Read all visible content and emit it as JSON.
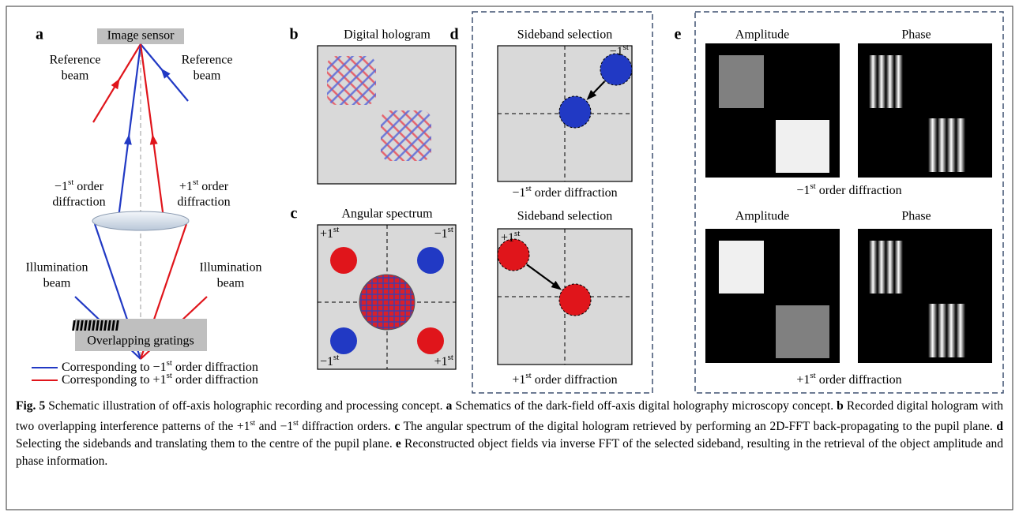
{
  "panel_a": {
    "letter": "a",
    "sensor": "Image sensor",
    "reference_left": [
      "Reference",
      "beam"
    ],
    "reference_right": [
      "Reference",
      "beam"
    ],
    "diffraction_left": [
      {
        "pre": "−1",
        "sup": "st",
        "post": " order"
      },
      "diffraction"
    ],
    "diffraction_right": [
      {
        "pre": "+1",
        "sup": "st",
        "post": " order"
      },
      "diffraction"
    ],
    "illumination_left": [
      "Illumination",
      "beam"
    ],
    "illumination_right": [
      "Illumination",
      "beam"
    ],
    "gratings": "Overlapping gratings",
    "legend": [
      {
        "pre": "Corresponding to −1",
        "sup": "st",
        "post": " order diffraction",
        "color": "#2139c4"
      },
      {
        "pre": "Corresponding to +1",
        "sup": "st",
        "post": " order diffraction",
        "color": "#e0151b"
      }
    ]
  },
  "panel_b": {
    "letter": "b",
    "title": "Digital hologram"
  },
  "panel_c": {
    "letter": "c",
    "title": "Angular spectrum",
    "corners": [
      {
        "pre": "+1",
        "sup": "st"
      },
      {
        "pre": "−1",
        "sup": "st"
      },
      {
        "pre": "−1",
        "sup": "st"
      },
      {
        "pre": "+1",
        "sup": "st"
      }
    ]
  },
  "panel_d": {
    "letter": "d",
    "blocks": [
      {
        "title": "Sideband selection",
        "corner": {
          "pre": "−1",
          "sup": "st"
        },
        "caption": {
          "pre": "−1",
          "sup": "st",
          "post": " order diffraction"
        }
      },
      {
        "title": "Sideband selection",
        "corner": {
          "pre": "+1",
          "sup": "st"
        },
        "caption": {
          "pre": "+1",
          "sup": "st",
          "post": " order diffraction"
        }
      }
    ]
  },
  "panel_e": {
    "letter": "e",
    "blocks": [
      {
        "labels": [
          "Amplitude",
          "Phase"
        ],
        "caption": {
          "pre": "−1",
          "sup": "st",
          "post": " order diffraction"
        }
      },
      {
        "labels": [
          "Amplitude",
          "Phase"
        ],
        "caption": {
          "pre": "+1",
          "sup": "st",
          "post": " order diffraction"
        }
      }
    ]
  },
  "caption": {
    "lead": "Fig. 5",
    "intro": " Schematic illustration of off-axis holographic recording and processing concept.",
    "items": [
      {
        "letter": "a",
        "parts": [
          " Schematics of the dark-field off-axis digital holography microscopy concept."
        ]
      },
      {
        "letter": "b",
        "parts": [
          " Recorded digital hologram with two overlapping interference patterns of the +1",
          {
            "sup": "st"
          },
          " and −1",
          {
            "sup": "st"
          },
          " diffraction orders."
        ]
      },
      {
        "letter": "c",
        "parts": [
          " The angular spectrum of the digital hologram retrieved by performing an 2D-FFT back-propagating to the pupil plane."
        ]
      },
      {
        "letter": "d",
        "parts": [
          " Selecting the sidebands and translating them to the centre of the pupil plane."
        ]
      },
      {
        "letter": "e",
        "parts": [
          " Reconstructed object fields via inverse FFT of the selected sideband, resulting in the retrieval of the object amplitude and phase information."
        ]
      }
    ]
  }
}
